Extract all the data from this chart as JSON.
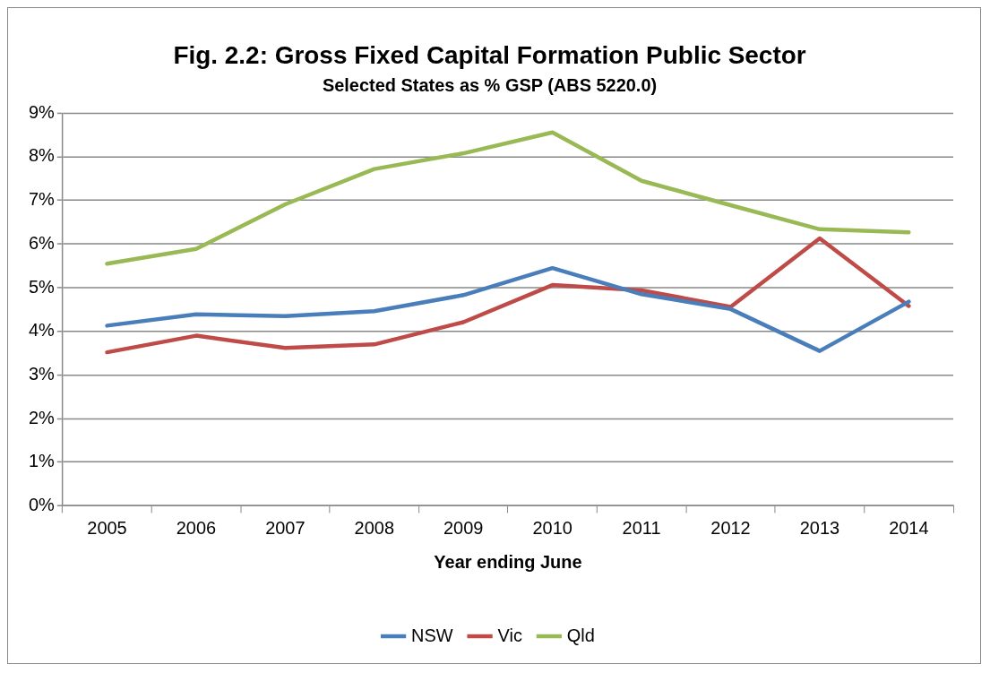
{
  "chart_data": {
    "type": "line",
    "title": "Fig. 2.2: Gross Fixed Capital Formation Public Sector",
    "subtitle": "Selected States as % GSP (ABS 5220.0)",
    "xlabel": "Year ending June",
    "categories": [
      "2005",
      "2006",
      "2007",
      "2008",
      "2009",
      "2010",
      "2011",
      "2012",
      "2013",
      "2014"
    ],
    "series": [
      {
        "name": "NSW",
        "color": "#4a7ebb",
        "values": [
          4.13,
          4.39,
          4.35,
          4.46,
          4.83,
          5.45,
          4.85,
          4.51,
          3.55,
          4.68
        ]
      },
      {
        "name": "Vic",
        "color": "#be4b48",
        "values": [
          3.52,
          3.9,
          3.62,
          3.7,
          4.21,
          5.06,
          4.94,
          4.56,
          6.13,
          4.58
        ]
      },
      {
        "name": "Qld",
        "color": "#98b954",
        "values": [
          5.55,
          5.89,
          6.91,
          7.72,
          8.08,
          8.56,
          7.45,
          6.89,
          6.34,
          6.27
        ]
      }
    ],
    "ylim": [
      0,
      9
    ],
    "yticks": [
      {
        "value": 0,
        "label": "0%"
      },
      {
        "value": 1,
        "label": "1%"
      },
      {
        "value": 2,
        "label": "2%"
      },
      {
        "value": 3,
        "label": "3%"
      },
      {
        "value": 4,
        "label": "4%"
      },
      {
        "value": 5,
        "label": "5%"
      },
      {
        "value": 6,
        "label": "6%"
      },
      {
        "value": 7,
        "label": "7%"
      },
      {
        "value": 8,
        "label": "8%"
      },
      {
        "value": 9,
        "label": "9%"
      }
    ],
    "grid": "y",
    "legend": "bottom",
    "marker": "none",
    "line_style": "solid"
  }
}
